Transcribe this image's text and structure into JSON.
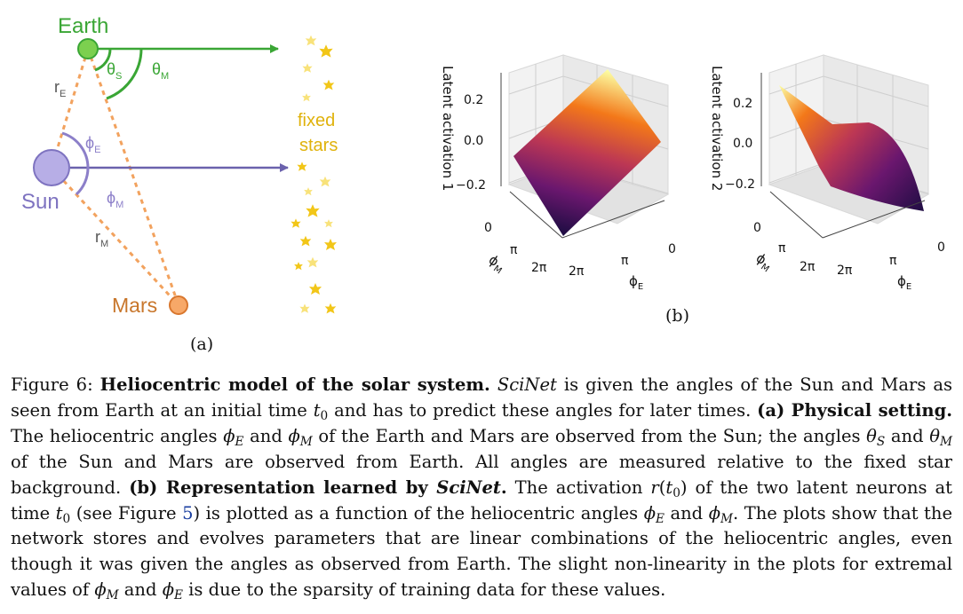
{
  "panel_a": {
    "labels": {
      "earth": "Earth",
      "sun": "Sun",
      "mars": "Mars",
      "fixed": "fixed",
      "stars": "stars",
      "theta": "θ",
      "phi": "ϕ",
      "r": "r",
      "sub_s": "S",
      "sub_m": "M",
      "sub_e": "E"
    },
    "panel_label": "(a)",
    "colors": {
      "earth": "#3aa635",
      "sun": "#8c7fc9",
      "mars": "#f2934a",
      "mars_text": "#c8762b",
      "dashed": "#f2a25e",
      "stars": "#f2c618",
      "stars_text": "#e0b20c"
    },
    "icons": [
      "star-icon"
    ]
  },
  "panel_b": {
    "panel_label": "(b)",
    "plots": [
      {
        "zlabel": "Latent activation 1",
        "zticks": [
          "0.2",
          "0.0",
          "−0.2"
        ],
        "phiM_ticks": [
          "0",
          "π",
          "2π"
        ],
        "phiE_ticks": [
          "2π",
          "π",
          "0"
        ],
        "phiM_label": "ϕ",
        "phiE_label": "ϕ",
        "sub_m": "M",
        "sub_e": "E"
      },
      {
        "zlabel": "Latent activation 2",
        "zticks": [
          "0.2",
          "0.0",
          "−0.2"
        ],
        "phiM_ticks": [
          "0",
          "π",
          "2π"
        ],
        "phiE_ticks": [
          "2π",
          "π",
          "0"
        ],
        "phiM_label": "ϕ",
        "phiE_label": "ϕ",
        "sub_m": "M",
        "sub_e": "E"
      }
    ],
    "colormap": [
      "#1b0c41",
      "#6a176e",
      "#bc3754",
      "#f37819",
      "#fcffa4"
    ]
  },
  "caption": {
    "fig": "Figure 6:",
    "title": "Heliocentric model of the solar system.",
    "t1": "SciNet",
    "t2": " is given the angles of the Sun and Mars as seen from Earth at an initial time ",
    "t0": "t",
    "zero": "0",
    "t3": " and has to predict these angles for later times. ",
    "a_head": "(a) Physical setting.",
    "t4": " The heliocentric angles ",
    "phi": "ϕ",
    "theta": "θ",
    "E": "E",
    "M": "M",
    "S": "S",
    "and": " and ",
    "t5": " of the Earth and Mars are observed from the Sun; the angles ",
    "t6": " of the Sun and Mars are observed from Earth. All angles are measured relative to the fixed star background. ",
    "b_head": "(b) Representation learned by ",
    "b_sci": "SciNet",
    "b_dot": ".",
    "t7": " The activation ",
    "r": "r",
    "paren_open": "(",
    "paren_close": ")",
    "t8": " of the two latent neurons at time ",
    "t9": " (see Figure ",
    "fig5": "5",
    "t10": ") is plotted as a function of the heliocentric angles ",
    "t11": ". The plots show that the network stores and evolves parameters that are linear combinations of the heliocentric angles, even though it was given the angles as observed from Earth. The slight non-linearity in the plots for extremal values of ",
    "t12": " is due to the sparsity of training data for these values."
  }
}
